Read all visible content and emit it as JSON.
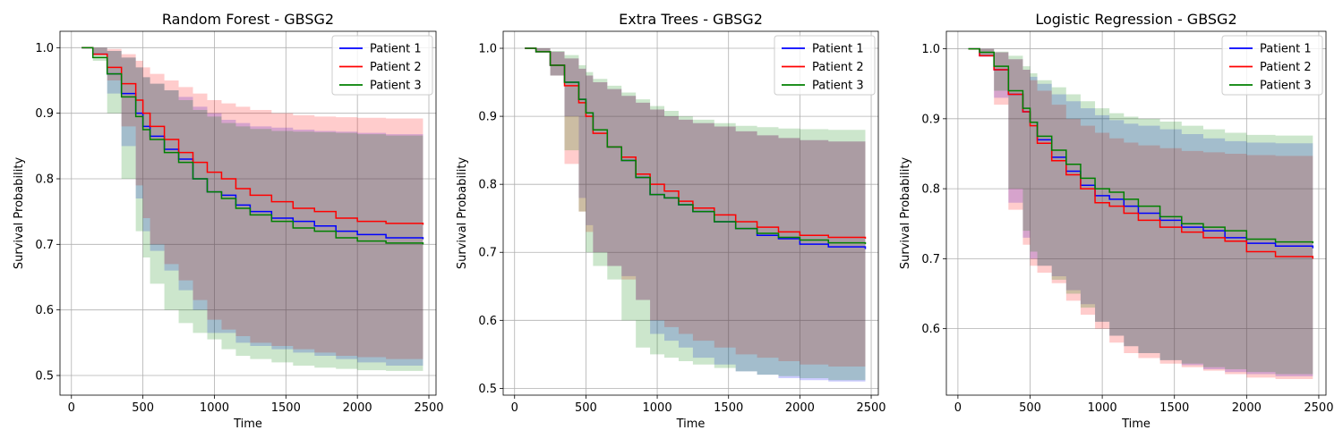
{
  "colors": {
    "patient_1": "#0000ff",
    "patient_2": "#ff0000",
    "patient_3": "#008000"
  },
  "chart_data": [
    {
      "type": "line",
      "title": "Random Forest - GBSG2",
      "xlabel": "Time",
      "ylabel": "Survival Probability",
      "xlim": [
        -80,
        2550
      ],
      "ylim": [
        0.47,
        1.025
      ],
      "xticks": [
        0,
        500,
        1000,
        1500,
        2000,
        2500
      ],
      "yticks": [
        0.5,
        0.6,
        0.7,
        0.8,
        0.9,
        1.0
      ],
      "grid": true,
      "legend_position": "top-right",
      "series": [
        {
          "name": "Patient 1",
          "color": "#0000ff",
          "x": [
            72,
            150,
            250,
            350,
            450,
            500,
            550,
            650,
            750,
            850,
            950,
            1050,
            1150,
            1250,
            1400,
            1550,
            1700,
            1850,
            2000,
            2200,
            2459
          ],
          "y": [
            1.0,
            0.99,
            0.96,
            0.93,
            0.9,
            0.88,
            0.865,
            0.845,
            0.83,
            0.8,
            0.78,
            0.775,
            0.76,
            0.75,
            0.74,
            0.735,
            0.728,
            0.72,
            0.715,
            0.71,
            0.708
          ],
          "lower": [
            1.0,
            0.99,
            0.93,
            0.85,
            0.77,
            0.72,
            0.69,
            0.66,
            0.63,
            0.6,
            0.565,
            0.565,
            0.55,
            0.545,
            0.54,
            0.535,
            0.53,
            0.525,
            0.52,
            0.515,
            0.512
          ],
          "upper": [
            1.0,
            1.0,
            0.995,
            0.985,
            0.97,
            0.955,
            0.945,
            0.935,
            0.925,
            0.91,
            0.9,
            0.89,
            0.885,
            0.88,
            0.878,
            0.875,
            0.873,
            0.872,
            0.87,
            0.868,
            0.866
          ]
        },
        {
          "name": "Patient 2",
          "color": "#ff0000",
          "x": [
            72,
            150,
            250,
            350,
            450,
            500,
            550,
            650,
            750,
            850,
            950,
            1050,
            1150,
            1250,
            1400,
            1550,
            1700,
            1850,
            2000,
            2200,
            2459
          ],
          "y": [
            1.0,
            0.99,
            0.97,
            0.945,
            0.92,
            0.9,
            0.88,
            0.86,
            0.84,
            0.825,
            0.81,
            0.8,
            0.785,
            0.775,
            0.765,
            0.755,
            0.75,
            0.74,
            0.735,
            0.732,
            0.73
          ],
          "lower": [
            1.0,
            0.99,
            0.95,
            0.88,
            0.79,
            0.74,
            0.7,
            0.67,
            0.645,
            0.615,
            0.585,
            0.57,
            0.56,
            0.55,
            0.545,
            0.54,
            0.535,
            0.53,
            0.528,
            0.525,
            0.524
          ],
          "upper": [
            1.0,
            1.0,
            0.998,
            0.99,
            0.98,
            0.97,
            0.96,
            0.95,
            0.94,
            0.93,
            0.92,
            0.915,
            0.91,
            0.905,
            0.9,
            0.897,
            0.895,
            0.894,
            0.893,
            0.892,
            0.891
          ]
        },
        {
          "name": "Patient 3",
          "color": "#008000",
          "x": [
            72,
            150,
            250,
            350,
            450,
            500,
            550,
            650,
            750,
            850,
            950,
            1050,
            1150,
            1250,
            1400,
            1550,
            1700,
            1850,
            2000,
            2200,
            2459
          ],
          "y": [
            1.0,
            0.985,
            0.96,
            0.925,
            0.895,
            0.875,
            0.86,
            0.84,
            0.825,
            0.8,
            0.78,
            0.77,
            0.755,
            0.745,
            0.735,
            0.725,
            0.72,
            0.71,
            0.705,
            0.702,
            0.7
          ],
          "lower": [
            1.0,
            0.98,
            0.9,
            0.8,
            0.72,
            0.68,
            0.64,
            0.6,
            0.58,
            0.565,
            0.555,
            0.54,
            0.53,
            0.525,
            0.52,
            0.515,
            0.512,
            0.51,
            0.508,
            0.507,
            0.506
          ],
          "upper": [
            1.0,
            1.0,
            0.995,
            0.985,
            0.97,
            0.955,
            0.945,
            0.935,
            0.92,
            0.905,
            0.895,
            0.885,
            0.88,
            0.876,
            0.873,
            0.872,
            0.871,
            0.87,
            0.868,
            0.866,
            0.865
          ]
        }
      ]
    },
    {
      "type": "line",
      "title": "Extra Trees - GBSG2",
      "xlabel": "Time",
      "ylabel": "Survival Probability",
      "xlim": [
        -80,
        2550
      ],
      "ylim": [
        0.49,
        1.025
      ],
      "xticks": [
        0,
        500,
        1000,
        1500,
        2000,
        2500
      ],
      "yticks": [
        0.5,
        0.6,
        0.7,
        0.8,
        0.9,
        1.0
      ],
      "grid": true,
      "legend_position": "top-right",
      "series": [
        {
          "name": "Patient 1",
          "color": "#0000ff",
          "x": [
            72,
            150,
            250,
            350,
            450,
            500,
            550,
            650,
            750,
            850,
            950,
            1050,
            1150,
            1250,
            1400,
            1550,
            1700,
            1850,
            2000,
            2200,
            2459
          ],
          "y": [
            1.0,
            0.995,
            0.975,
            0.95,
            0.925,
            0.905,
            0.88,
            0.855,
            0.835,
            0.81,
            0.785,
            0.78,
            0.77,
            0.76,
            0.745,
            0.735,
            0.725,
            0.72,
            0.712,
            0.708,
            0.705
          ],
          "lower": [
            1.0,
            0.995,
            0.96,
            0.9,
            0.78,
            0.74,
            0.7,
            0.68,
            0.665,
            0.63,
            0.58,
            0.57,
            0.56,
            0.545,
            0.535,
            0.525,
            0.52,
            0.515,
            0.512,
            0.51,
            0.508
          ],
          "upper": [
            1.0,
            1.0,
            0.995,
            0.985,
            0.97,
            0.96,
            0.95,
            0.94,
            0.93,
            0.92,
            0.91,
            0.9,
            0.895,
            0.89,
            0.885,
            0.878,
            0.872,
            0.868,
            0.865,
            0.863,
            0.862
          ]
        },
        {
          "name": "Patient 2",
          "color": "#ff0000",
          "x": [
            72,
            150,
            250,
            350,
            450,
            500,
            550,
            650,
            750,
            850,
            950,
            1050,
            1150,
            1250,
            1400,
            1550,
            1700,
            1850,
            2000,
            2200,
            2459
          ],
          "y": [
            1.0,
            0.995,
            0.975,
            0.945,
            0.92,
            0.9,
            0.875,
            0.855,
            0.84,
            0.815,
            0.8,
            0.79,
            0.775,
            0.765,
            0.755,
            0.745,
            0.737,
            0.73,
            0.725,
            0.722,
            0.72
          ],
          "lower": [
            1.0,
            0.995,
            0.96,
            0.83,
            0.76,
            0.73,
            0.7,
            0.68,
            0.66,
            0.63,
            0.6,
            0.59,
            0.58,
            0.57,
            0.56,
            0.55,
            0.545,
            0.54,
            0.535,
            0.532,
            0.53
          ],
          "upper": [
            1.0,
            1.0,
            0.995,
            0.985,
            0.97,
            0.96,
            0.95,
            0.94,
            0.93,
            0.92,
            0.91,
            0.9,
            0.895,
            0.89,
            0.885,
            0.878,
            0.872,
            0.868,
            0.865,
            0.863,
            0.862
          ]
        },
        {
          "name": "Patient 3",
          "color": "#008000",
          "x": [
            72,
            150,
            250,
            350,
            450,
            500,
            550,
            650,
            750,
            850,
            950,
            1050,
            1150,
            1250,
            1400,
            1550,
            1700,
            1850,
            2000,
            2200,
            2459
          ],
          "y": [
            1.0,
            0.995,
            0.975,
            0.95,
            0.925,
            0.905,
            0.88,
            0.855,
            0.835,
            0.81,
            0.785,
            0.78,
            0.77,
            0.76,
            0.745,
            0.735,
            0.728,
            0.722,
            0.718,
            0.714,
            0.712
          ],
          "lower": [
            1.0,
            0.995,
            0.96,
            0.85,
            0.76,
            0.7,
            0.68,
            0.66,
            0.6,
            0.56,
            0.55,
            0.545,
            0.54,
            0.535,
            0.53,
            0.525,
            0.52,
            0.518,
            0.515,
            0.512,
            0.51
          ],
          "upper": [
            1.0,
            1.0,
            0.996,
            0.99,
            0.975,
            0.965,
            0.955,
            0.945,
            0.935,
            0.925,
            0.915,
            0.908,
            0.9,
            0.895,
            0.89,
            0.886,
            0.884,
            0.882,
            0.881,
            0.88,
            0.88
          ]
        }
      ]
    },
    {
      "type": "line",
      "title": "Logistic Regression - GBSG2",
      "xlabel": "Time",
      "ylabel": "Survival Probability",
      "xlim": [
        -80,
        2550
      ],
      "ylim": [
        0.505,
        1.025
      ],
      "xticks": [
        0,
        500,
        1000,
        1500,
        2000,
        2500
      ],
      "yticks": [
        0.6,
        0.7,
        0.8,
        0.9,
        1.0
      ],
      "grid": true,
      "legend_position": "top-right",
      "series": [
        {
          "name": "Patient 1",
          "color": "#0000ff",
          "x": [
            72,
            150,
            250,
            350,
            450,
            500,
            550,
            650,
            750,
            850,
            950,
            1050,
            1150,
            1250,
            1400,
            1550,
            1700,
            1850,
            2000,
            2200,
            2459
          ],
          "y": [
            1.0,
            0.99,
            0.97,
            0.935,
            0.91,
            0.895,
            0.87,
            0.845,
            0.825,
            0.805,
            0.79,
            0.785,
            0.775,
            0.765,
            0.755,
            0.745,
            0.74,
            0.73,
            0.722,
            0.718,
            0.715
          ],
          "lower": [
            1.0,
            0.99,
            0.93,
            0.78,
            0.73,
            0.7,
            0.69,
            0.675,
            0.655,
            0.635,
            0.61,
            0.59,
            0.575,
            0.565,
            0.555,
            0.548,
            0.542,
            0.538,
            0.535,
            0.532,
            0.53
          ],
          "upper": [
            1.0,
            1.0,
            0.995,
            0.985,
            0.97,
            0.96,
            0.95,
            0.935,
            0.925,
            0.915,
            0.905,
            0.898,
            0.893,
            0.89,
            0.885,
            0.878,
            0.872,
            0.868,
            0.866,
            0.865,
            0.864
          ]
        },
        {
          "name": "Patient 2",
          "color": "#ff0000",
          "x": [
            72,
            150,
            250,
            350,
            450,
            500,
            550,
            650,
            750,
            850,
            950,
            1050,
            1150,
            1250,
            1400,
            1550,
            1700,
            1850,
            2000,
            2200,
            2459
          ],
          "y": [
            1.0,
            0.99,
            0.97,
            0.935,
            0.91,
            0.89,
            0.865,
            0.84,
            0.82,
            0.8,
            0.78,
            0.775,
            0.765,
            0.755,
            0.745,
            0.738,
            0.73,
            0.725,
            0.71,
            0.703,
            0.7
          ],
          "lower": [
            1.0,
            0.99,
            0.92,
            0.77,
            0.72,
            0.69,
            0.68,
            0.665,
            0.64,
            0.62,
            0.6,
            0.58,
            0.565,
            0.558,
            0.55,
            0.545,
            0.54,
            0.535,
            0.53,
            0.528,
            0.527
          ],
          "upper": [
            1.0,
            1.0,
            0.995,
            0.985,
            0.97,
            0.955,
            0.94,
            0.92,
            0.9,
            0.89,
            0.88,
            0.872,
            0.866,
            0.862,
            0.858,
            0.854,
            0.852,
            0.85,
            0.848,
            0.847,
            0.846
          ]
        },
        {
          "name": "Patient 3",
          "color": "#008000",
          "x": [
            72,
            150,
            250,
            350,
            450,
            500,
            550,
            650,
            750,
            850,
            950,
            1050,
            1150,
            1250,
            1400,
            1550,
            1700,
            1850,
            2000,
            2200,
            2459
          ],
          "y": [
            1.0,
            0.995,
            0.975,
            0.94,
            0.915,
            0.895,
            0.875,
            0.855,
            0.835,
            0.815,
            0.8,
            0.795,
            0.785,
            0.775,
            0.76,
            0.75,
            0.745,
            0.74,
            0.728,
            0.724,
            0.722
          ],
          "lower": [
            1.0,
            0.99,
            0.94,
            0.8,
            0.74,
            0.71,
            0.69,
            0.67,
            0.65,
            0.63,
            0.61,
            0.59,
            0.575,
            0.565,
            0.555,
            0.55,
            0.545,
            0.542,
            0.538,
            0.535,
            0.534
          ],
          "upper": [
            1.0,
            1.0,
            0.996,
            0.99,
            0.975,
            0.965,
            0.955,
            0.945,
            0.935,
            0.925,
            0.915,
            0.908,
            0.903,
            0.9,
            0.896,
            0.89,
            0.885,
            0.88,
            0.877,
            0.876,
            0.875
          ]
        }
      ]
    }
  ]
}
